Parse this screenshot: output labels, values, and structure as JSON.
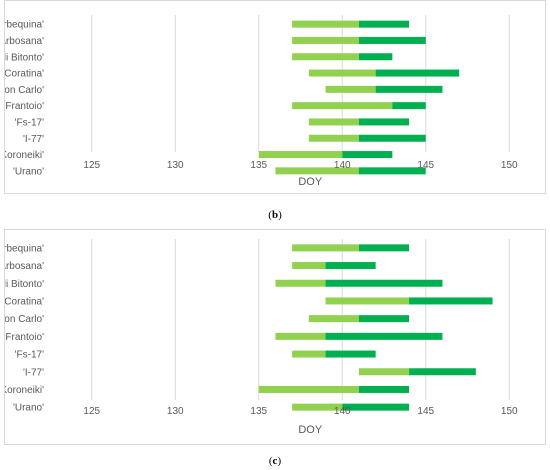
{
  "chart_data": [
    {
      "type": "bar",
      "panel": "b",
      "caption": "b",
      "xlabel": "DOY",
      "xlim": [
        122.5,
        152.5
      ],
      "xticks": [
        125,
        130,
        135,
        140,
        145,
        150
      ],
      "grid": true,
      "legend": "none",
      "categories": [
        "'Arbequina'",
        "'Arbosana'",
        "'Cima di Bitonto'",
        "'Coratina'",
        "'Don Carlo'",
        "'Frantoio'",
        "'Fs-17'",
        "'I-77'",
        "'Koroneiki'",
        "'Urano'"
      ],
      "start": [
        137,
        137,
        137,
        138,
        139,
        137,
        138,
        138,
        135,
        136
      ],
      "mid": [
        141,
        141,
        141,
        142,
        142,
        143,
        141,
        141,
        140,
        141
      ],
      "end": [
        144,
        145,
        143,
        147,
        146,
        145,
        144,
        145,
        143,
        145
      ],
      "colors": {
        "first_segment": "#92d050",
        "second_segment": "#00b050",
        "grid": "#d9d9d9"
      }
    },
    {
      "type": "bar",
      "panel": "c",
      "caption": "c",
      "xlabel": "DOY",
      "xlim": [
        122.5,
        152.5
      ],
      "xticks": [
        125,
        130,
        135,
        140,
        145,
        150
      ],
      "grid": true,
      "legend": "none",
      "categories": [
        "'Arbequina'",
        "'Arbosana'",
        "'Cima di Bitonto'",
        "'Coratina'",
        "'Don Carlo'",
        "'Frantoio'",
        "'Fs-17'",
        "'I-77'",
        "'Koroneiki'",
        "'Urano'"
      ],
      "start": [
        137,
        137,
        136,
        139,
        138,
        136,
        137,
        141,
        135,
        137
      ],
      "mid": [
        141,
        139,
        139,
        144,
        141,
        139,
        139,
        144,
        141,
        140
      ],
      "end": [
        144,
        142,
        146,
        149,
        144,
        146,
        142,
        148,
        144,
        144
      ],
      "colors": {
        "first_segment": "#92d050",
        "second_segment": "#00b050",
        "grid": "#d9d9d9"
      }
    }
  ]
}
